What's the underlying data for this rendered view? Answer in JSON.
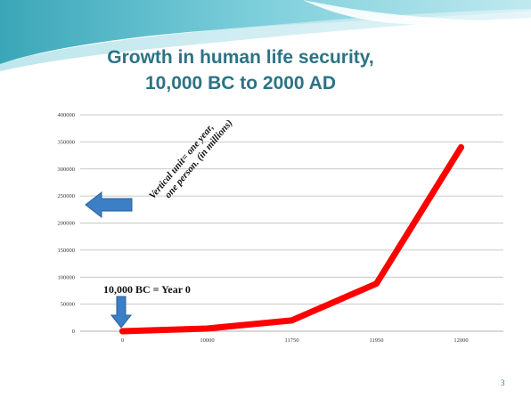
{
  "slide": {
    "title_line1": "Growth in human life security,",
    "title_line2": "10,000 BC to 2000 AD",
    "slide_number": "3",
    "colors": {
      "title": "#2b7386",
      "series": "#ff0000",
      "arrow": "#3b7fc6"
    }
  },
  "chart_data": {
    "type": "line",
    "categories": [
      "0",
      "10000",
      "11750",
      "11950",
      "12000"
    ],
    "series": [
      {
        "values": [
          0,
          5000,
          20000,
          88000,
          340000
        ]
      }
    ],
    "ylim": [
      0,
      400000
    ],
    "yticks": [
      "0",
      "50000",
      "100000",
      "150000",
      "200000",
      "250000",
      "300000",
      "350000",
      "400000"
    ],
    "grid": true,
    "annotations": {
      "vertical_unit_line1": "Vertical unit= one year,",
      "vertical_unit_line2": "one person. (in millions)",
      "year_zero": "10,000 BC = Year 0"
    }
  }
}
